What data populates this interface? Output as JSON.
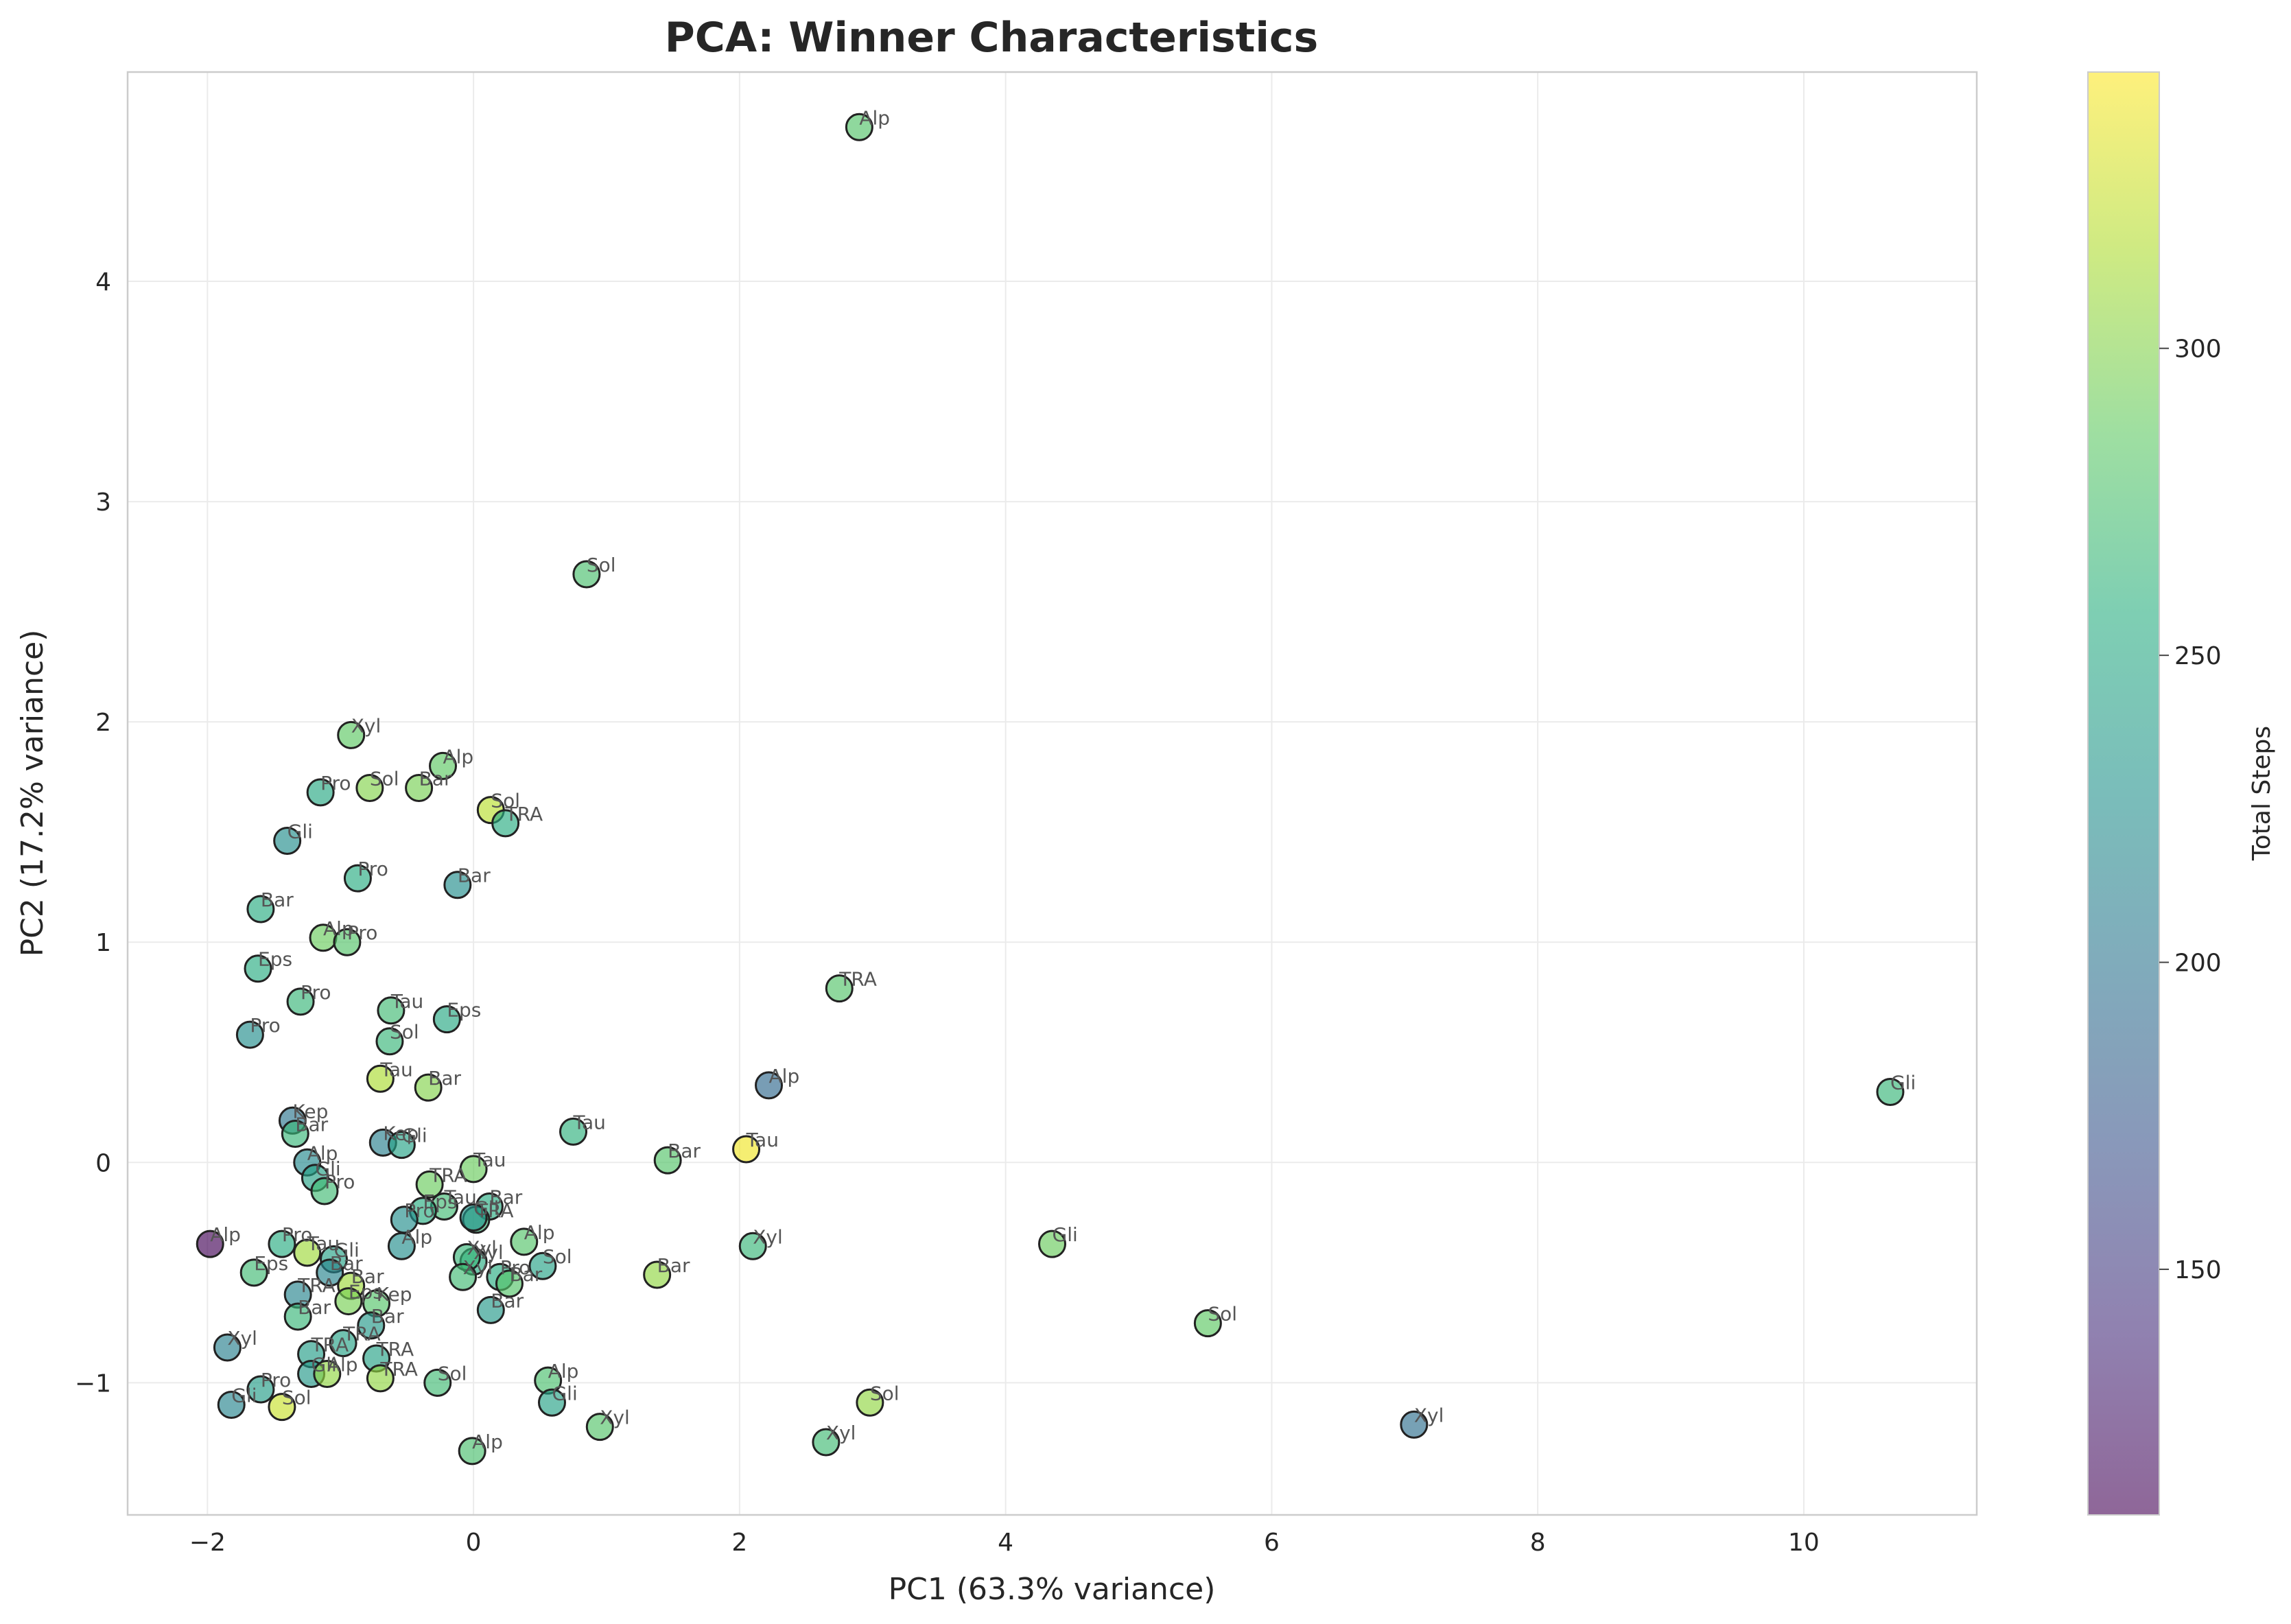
{
  "chart_data": {
    "type": "scatter",
    "title": "PCA: Winner Characteristics",
    "xlabel": "PC1 (63.3% variance)",
    "ylabel": "PC2 (17.2% variance)",
    "xlim": [
      -2.6,
      11.3
    ],
    "ylim": [
      -1.6,
      4.95
    ],
    "xticks": [
      -2,
      0,
      2,
      4,
      6,
      8,
      10
    ],
    "yticks": [
      -1,
      0,
      1,
      2,
      3,
      4
    ],
    "xtick_labels": [
      "−2",
      "0",
      "2",
      "4",
      "6",
      "8",
      "10"
    ],
    "ytick_labels": [
      "−1",
      "0",
      "1",
      "2",
      "3",
      "4"
    ],
    "grid": true,
    "colormap": "viridis",
    "colorbar": {
      "label": "Total Steps",
      "range": [
        110,
        345
      ],
      "ticks": [
        150,
        200,
        250,
        300
      ],
      "tick_labels": [
        "150",
        "200",
        "250",
        "300"
      ]
    },
    "points": [
      {
        "x": 2.9,
        "y": 4.7,
        "c": 280,
        "label": "Alp"
      },
      {
        "x": 0.85,
        "y": 2.67,
        "c": 275,
        "label": "Sol"
      },
      {
        "x": -0.92,
        "y": 1.94,
        "c": 285,
        "label": "Xyl"
      },
      {
        "x": -0.23,
        "y": 1.8,
        "c": 285,
        "label": "Alp"
      },
      {
        "x": -1.15,
        "y": 1.68,
        "c": 250,
        "label": "Pro"
      },
      {
        "x": -0.78,
        "y": 1.7,
        "c": 300,
        "label": "Sol"
      },
      {
        "x": -0.41,
        "y": 1.7,
        "c": 295,
        "label": "Bar"
      },
      {
        "x": 0.13,
        "y": 1.6,
        "c": 320,
        "label": "Sol"
      },
      {
        "x": 0.24,
        "y": 1.54,
        "c": 255,
        "label": "TRA"
      },
      {
        "x": -1.4,
        "y": 1.46,
        "c": 225,
        "label": "Gli"
      },
      {
        "x": -0.87,
        "y": 1.29,
        "c": 255,
        "label": "Pro"
      },
      {
        "x": -0.12,
        "y": 1.26,
        "c": 225,
        "label": "Bar"
      },
      {
        "x": -1.6,
        "y": 1.15,
        "c": 255,
        "label": "Bar"
      },
      {
        "x": -1.13,
        "y": 1.02,
        "c": 290,
        "label": "Alp"
      },
      {
        "x": -0.95,
        "y": 1.0,
        "c": 280,
        "label": "Pro"
      },
      {
        "x": -1.62,
        "y": 0.88,
        "c": 255,
        "label": "Eps"
      },
      {
        "x": 2.75,
        "y": 0.79,
        "c": 280,
        "label": "TRA"
      },
      {
        "x": -1.3,
        "y": 0.73,
        "c": 265,
        "label": "Pro"
      },
      {
        "x": -0.62,
        "y": 0.69,
        "c": 270,
        "label": "Tau"
      },
      {
        "x": -0.2,
        "y": 0.65,
        "c": 250,
        "label": "Eps"
      },
      {
        "x": -1.68,
        "y": 0.58,
        "c": 225,
        "label": "Pro"
      },
      {
        "x": -0.63,
        "y": 0.55,
        "c": 265,
        "label": "Sol"
      },
      {
        "x": -0.7,
        "y": 0.38,
        "c": 315,
        "label": "Tau"
      },
      {
        "x": -0.34,
        "y": 0.34,
        "c": 300,
        "label": "Bar"
      },
      {
        "x": 2.22,
        "y": 0.35,
        "c": 190,
        "label": "Alp"
      },
      {
        "x": 10.65,
        "y": 0.32,
        "c": 265,
        "label": "Gli"
      },
      {
        "x": -1.36,
        "y": 0.19,
        "c": 200,
        "label": "Kep"
      },
      {
        "x": -1.34,
        "y": 0.13,
        "c": 265,
        "label": "Bar"
      },
      {
        "x": 0.75,
        "y": 0.14,
        "c": 260,
        "label": "Tau"
      },
      {
        "x": -0.68,
        "y": 0.09,
        "c": 210,
        "label": "Kep"
      },
      {
        "x": -0.54,
        "y": 0.08,
        "c": 245,
        "label": "Gli"
      },
      {
        "x": 2.05,
        "y": 0.06,
        "c": 340,
        "label": "Tau"
      },
      {
        "x": 1.46,
        "y": 0.01,
        "c": 280,
        "label": "Bar"
      },
      {
        "x": -1.25,
        "y": 0.0,
        "c": 220,
        "label": "Alp"
      },
      {
        "x": 0.0,
        "y": -0.03,
        "c": 290,
        "label": "Tau"
      },
      {
        "x": -1.19,
        "y": -0.07,
        "c": 245,
        "label": "Gli"
      },
      {
        "x": -0.33,
        "y": -0.1,
        "c": 290,
        "label": "TRA"
      },
      {
        "x": -1.12,
        "y": -0.13,
        "c": 270,
        "label": "Pro"
      },
      {
        "x": 0.12,
        "y": -0.2,
        "c": 255,
        "label": "Bar"
      },
      {
        "x": -0.22,
        "y": -0.2,
        "c": 270,
        "label": "Tau"
      },
      {
        "x": -0.38,
        "y": -0.22,
        "c": 255,
        "label": "Eps"
      },
      {
        "x": -0.52,
        "y": -0.26,
        "c": 225,
        "label": "Pro"
      },
      {
        "x": 0.02,
        "y": -0.26,
        "c": 265,
        "label": "TRA"
      },
      {
        "x": 0.0,
        "y": -0.25,
        "c": 230,
        "label": "Gli"
      },
      {
        "x": 0.38,
        "y": -0.36,
        "c": 280,
        "label": "Alp"
      },
      {
        "x": -1.98,
        "y": -0.37,
        "c": 112,
        "label": "Alp"
      },
      {
        "x": -1.44,
        "y": -0.37,
        "c": 255,
        "label": "Pro"
      },
      {
        "x": -0.54,
        "y": -0.38,
        "c": 225,
        "label": "Alp"
      },
      {
        "x": 4.35,
        "y": -0.37,
        "c": 290,
        "label": "Gli"
      },
      {
        "x": 2.1,
        "y": -0.38,
        "c": 265,
        "label": "Xyl"
      },
      {
        "x": -1.25,
        "y": -0.41,
        "c": 310,
        "label": "Tau"
      },
      {
        "x": -1.05,
        "y": -0.44,
        "c": 245,
        "label": "Gli"
      },
      {
        "x": 0.0,
        "y": -0.45,
        "c": 255,
        "label": "Xyl"
      },
      {
        "x": -0.05,
        "y": -0.43,
        "c": 265,
        "label": "Xyl"
      },
      {
        "x": 0.52,
        "y": -0.47,
        "c": 245,
        "label": "Sol"
      },
      {
        "x": -1.65,
        "y": -0.5,
        "c": 270,
        "label": "Eps"
      },
      {
        "x": -1.08,
        "y": -0.5,
        "c": 215,
        "label": "Bar"
      },
      {
        "x": -0.08,
        "y": -0.52,
        "c": 270,
        "label": "Xyl"
      },
      {
        "x": 0.2,
        "y": -0.52,
        "c": 255,
        "label": "Pro"
      },
      {
        "x": 0.27,
        "y": -0.55,
        "c": 280,
        "label": "Bar"
      },
      {
        "x": 1.38,
        "y": -0.51,
        "c": 305,
        "label": "Bar"
      },
      {
        "x": -0.92,
        "y": -0.56,
        "c": 310,
        "label": "Bar"
      },
      {
        "x": -1.32,
        "y": -0.6,
        "c": 215,
        "label": "TRA"
      },
      {
        "x": -0.94,
        "y": -0.63,
        "c": 295,
        "label": "Eps"
      },
      {
        "x": -0.73,
        "y": -0.64,
        "c": 280,
        "label": "Kep"
      },
      {
        "x": 0.13,
        "y": -0.67,
        "c": 235,
        "label": "Bar"
      },
      {
        "x": -1.32,
        "y": -0.7,
        "c": 265,
        "label": "Bar"
      },
      {
        "x": 5.52,
        "y": -0.73,
        "c": 285,
        "label": "Sol"
      },
      {
        "x": -0.77,
        "y": -0.74,
        "c": 235,
        "label": "Bar"
      },
      {
        "x": -0.98,
        "y": -0.82,
        "c": 245,
        "label": "TRA"
      },
      {
        "x": -1.85,
        "y": -0.84,
        "c": 210,
        "label": "Xyl"
      },
      {
        "x": -1.22,
        "y": -0.87,
        "c": 240,
        "label": "TRA"
      },
      {
        "x": -0.73,
        "y": -0.89,
        "c": 245,
        "label": "TRA"
      },
      {
        "x": -1.22,
        "y": -0.96,
        "c": 235,
        "label": "Gli"
      },
      {
        "x": -1.1,
        "y": -0.96,
        "c": 305,
        "label": "Alp"
      },
      {
        "x": -0.7,
        "y": -0.98,
        "c": 305,
        "label": "TRA"
      },
      {
        "x": -0.27,
        "y": -1.0,
        "c": 270,
        "label": "Sol"
      },
      {
        "x": 0.56,
        "y": -0.99,
        "c": 275,
        "label": "Alp"
      },
      {
        "x": -1.6,
        "y": -1.03,
        "c": 240,
        "label": "Pro"
      },
      {
        "x": 0.59,
        "y": -1.09,
        "c": 245,
        "label": "Gli"
      },
      {
        "x": -1.82,
        "y": -1.1,
        "c": 215,
        "label": "Gli"
      },
      {
        "x": -1.44,
        "y": -1.11,
        "c": 325,
        "label": "Sol"
      },
      {
        "x": 2.98,
        "y": -1.09,
        "c": 305,
        "label": "Sol"
      },
      {
        "x": 0.95,
        "y": -1.2,
        "c": 280,
        "label": "Xyl"
      },
      {
        "x": 7.07,
        "y": -1.19,
        "c": 195,
        "label": "Xyl"
      },
      {
        "x": 2.65,
        "y": -1.27,
        "c": 270,
        "label": "Xyl"
      },
      {
        "x": -0.01,
        "y": -1.31,
        "c": 275,
        "label": "Alp"
      }
    ]
  }
}
